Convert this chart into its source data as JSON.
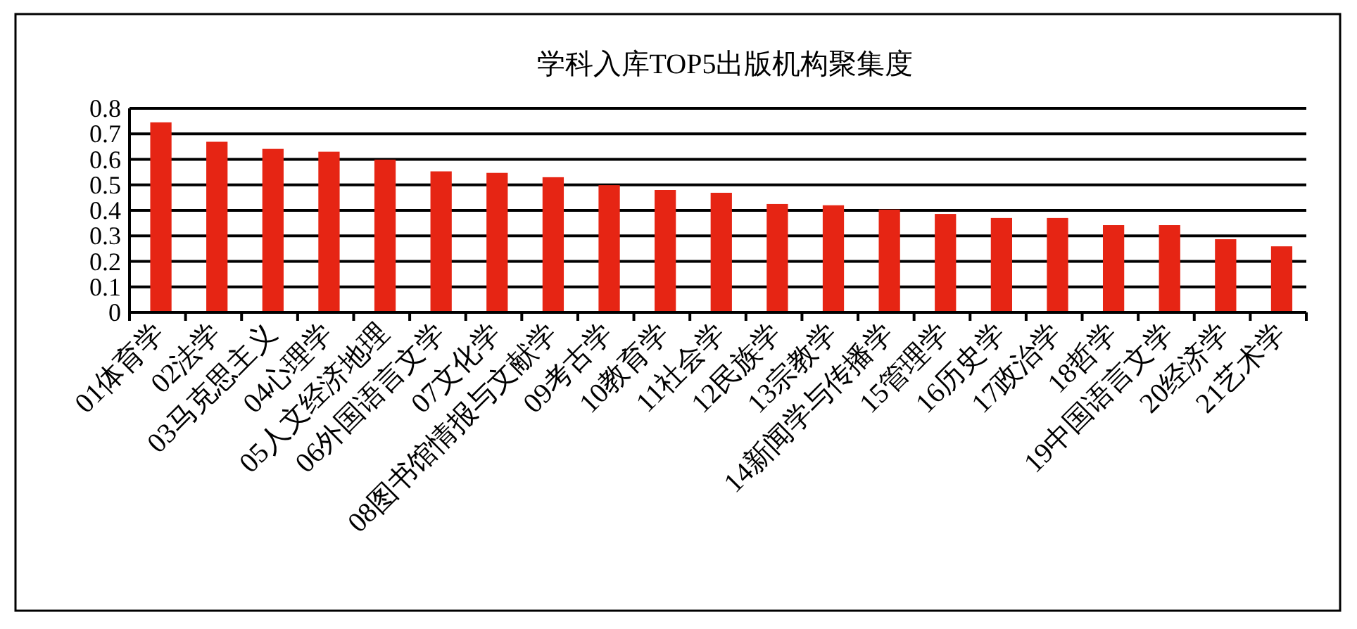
{
  "chart_data": {
    "type": "bar",
    "title": "学科入库TOP5出版机构聚集度",
    "categories": [
      "01体育学",
      "02法学",
      "03马克思主义",
      "04心理学",
      "05人文经济地理",
      "06外国语言文学",
      "07文化学",
      "08图书馆情报与文献学",
      "09考古学",
      "10教育学",
      "11社会学",
      "12民族学",
      "13宗教学",
      "14新闻学与传播学",
      "15管理学",
      "16历史学",
      "17政治学",
      "18哲学",
      "19中国语言文学",
      "20经济学",
      "21艺术学"
    ],
    "values": [
      0.745,
      0.669,
      0.641,
      0.63,
      0.599,
      0.553,
      0.547,
      0.53,
      0.499,
      0.48,
      0.469,
      0.425,
      0.42,
      0.403,
      0.386,
      0.37,
      0.37,
      0.342,
      0.342,
      0.287,
      0.259
    ],
    "color": "#e62514",
    "ylim": [
      0,
      0.8
    ],
    "yticks": [
      {
        "value": 0,
        "label": "0"
      },
      {
        "value": 0.1,
        "label": "0.1"
      },
      {
        "value": 0.2,
        "label": "0.2"
      },
      {
        "value": 0.3,
        "label": "0.3"
      },
      {
        "value": 0.4,
        "label": "0.4"
      },
      {
        "value": 0.5,
        "label": "0.5"
      },
      {
        "value": 0.6,
        "label": "0.6"
      },
      {
        "value": 0.7,
        "label": "0.7"
      },
      {
        "value": 0.8,
        "label": "0.8"
      }
    ],
    "grid": "y"
  }
}
